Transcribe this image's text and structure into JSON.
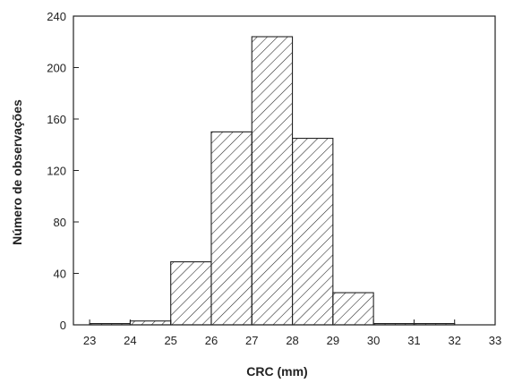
{
  "chart_data": {
    "type": "bar",
    "title": "",
    "xlabel": "CRC (mm)",
    "ylabel": "Número de observações",
    "bin_edges": [
      23,
      24,
      25,
      26,
      27,
      28,
      29,
      30,
      31,
      32
    ],
    "values": [
      1,
      3,
      49,
      150,
      224,
      145,
      25,
      1,
      1
    ],
    "xlim": [
      22.6,
      33
    ],
    "ylim": [
      0,
      240
    ],
    "x_ticks": [
      "23",
      "24",
      "25",
      "26",
      "27",
      "28",
      "29",
      "30",
      "31",
      "32",
      "33"
    ],
    "y_ticks": [
      "0",
      "40",
      "80",
      "120",
      "160",
      "200",
      "240"
    ],
    "bar_fill": "hatched",
    "bar_color": "#222222",
    "grid": false,
    "legend": "none"
  }
}
